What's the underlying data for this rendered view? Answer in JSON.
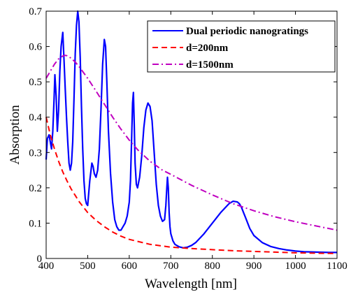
{
  "chart_data": {
    "type": "line",
    "xlabel": "Wavelength [nm]",
    "ylabel": "Absorption",
    "xlim": [
      400,
      1100
    ],
    "ylim": [
      0,
      0.7
    ],
    "x_ticks": [
      400,
      500,
      600,
      700,
      800,
      900,
      1000,
      1100
    ],
    "y_ticks": [
      0,
      0.1,
      0.2,
      0.3,
      0.4,
      0.5,
      0.6,
      0.7
    ],
    "x_tick_labels": [
      "400",
      "500",
      "600",
      "700",
      "800",
      "900",
      "1000",
      "1100"
    ],
    "y_tick_labels": [
      "0",
      "0.1",
      "0.2",
      "0.3",
      "0.4",
      "0.5",
      "0.6",
      "0.7"
    ],
    "grid": false,
    "legend_position": "top-right",
    "series": [
      {
        "name": "Dual periodic nanogratings",
        "color": "#0000ff",
        "style": "solid",
        "x": [
          400,
          403,
          407,
          410,
          413,
          416,
          419,
          421,
          424,
          427,
          430,
          433,
          436,
          440,
          443,
          446,
          449,
          452,
          455,
          458,
          461,
          464,
          467,
          470,
          473,
          476,
          479,
          482,
          485,
          488,
          491,
          494,
          497,
          500,
          505,
          510,
          513,
          516,
          520,
          524,
          528,
          532,
          536,
          540,
          543,
          546,
          550,
          555,
          560,
          565,
          570,
          575,
          580,
          585,
          590,
          595,
          600,
          603,
          606,
          608,
          610,
          612,
          614,
          617,
          620,
          625,
          630,
          635,
          640,
          645,
          650,
          655,
          660,
          665,
          670,
          675,
          680,
          685,
          688,
          690,
          692,
          694,
          696,
          698,
          700,
          705,
          710,
          720,
          730,
          740,
          750,
          760,
          780,
          800,
          820,
          840,
          850,
          860,
          865,
          870,
          875,
          880,
          890,
          900,
          920,
          940,
          960,
          980,
          1000,
          1020,
          1050,
          1080,
          1100
        ],
        "y": [
          0.28,
          0.34,
          0.35,
          0.33,
          0.31,
          0.36,
          0.45,
          0.52,
          0.46,
          0.36,
          0.42,
          0.53,
          0.6,
          0.64,
          0.56,
          0.48,
          0.4,
          0.33,
          0.27,
          0.25,
          0.27,
          0.33,
          0.45,
          0.58,
          0.66,
          0.7,
          0.67,
          0.57,
          0.43,
          0.31,
          0.22,
          0.17,
          0.155,
          0.15,
          0.22,
          0.27,
          0.26,
          0.24,
          0.23,
          0.25,
          0.31,
          0.42,
          0.55,
          0.62,
          0.6,
          0.5,
          0.36,
          0.24,
          0.16,
          0.11,
          0.09,
          0.08,
          0.08,
          0.09,
          0.1,
          0.12,
          0.16,
          0.22,
          0.35,
          0.44,
          0.47,
          0.38,
          0.27,
          0.21,
          0.2,
          0.23,
          0.29,
          0.37,
          0.42,
          0.44,
          0.43,
          0.39,
          0.3,
          0.21,
          0.15,
          0.12,
          0.105,
          0.11,
          0.15,
          0.19,
          0.23,
          0.2,
          0.13,
          0.09,
          0.07,
          0.05,
          0.04,
          0.033,
          0.03,
          0.032,
          0.037,
          0.045,
          0.07,
          0.1,
          0.13,
          0.155,
          0.162,
          0.16,
          0.155,
          0.145,
          0.13,
          0.115,
          0.085,
          0.065,
          0.045,
          0.034,
          0.028,
          0.024,
          0.021,
          0.019,
          0.018,
          0.017,
          0.017
        ]
      },
      {
        "name": "d=200nm",
        "color": "#ff0000",
        "style": "dashed",
        "x": [
          400,
          410,
          420,
          430,
          440,
          450,
          460,
          480,
          500,
          520,
          540,
          560,
          580,
          600,
          650,
          700,
          750,
          800,
          850,
          900,
          950,
          1000,
          1050,
          1100
        ],
        "y": [
          0.4,
          0.35,
          0.31,
          0.275,
          0.245,
          0.22,
          0.197,
          0.16,
          0.13,
          0.108,
          0.09,
          0.075,
          0.063,
          0.054,
          0.04,
          0.032,
          0.028,
          0.025,
          0.022,
          0.02,
          0.018,
          0.016,
          0.015,
          0.014
        ]
      },
      {
        "name": "d=1500nm",
        "color": "#c000c0",
        "style": "dashdot",
        "x": [
          400,
          410,
          420,
          430,
          440,
          445,
          450,
          460,
          470,
          480,
          500,
          520,
          540,
          560,
          580,
          600,
          620,
          650,
          680,
          700,
          750,
          800,
          850,
          900,
          950,
          1000,
          1050,
          1100
        ],
        "y": [
          0.51,
          0.53,
          0.55,
          0.565,
          0.573,
          0.575,
          0.574,
          0.567,
          0.556,
          0.542,
          0.51,
          0.474,
          0.437,
          0.4,
          0.366,
          0.335,
          0.308,
          0.275,
          0.25,
          0.238,
          0.207,
          0.18,
          0.155,
          0.135,
          0.118,
          0.104,
          0.092,
          0.08
        ]
      }
    ]
  }
}
